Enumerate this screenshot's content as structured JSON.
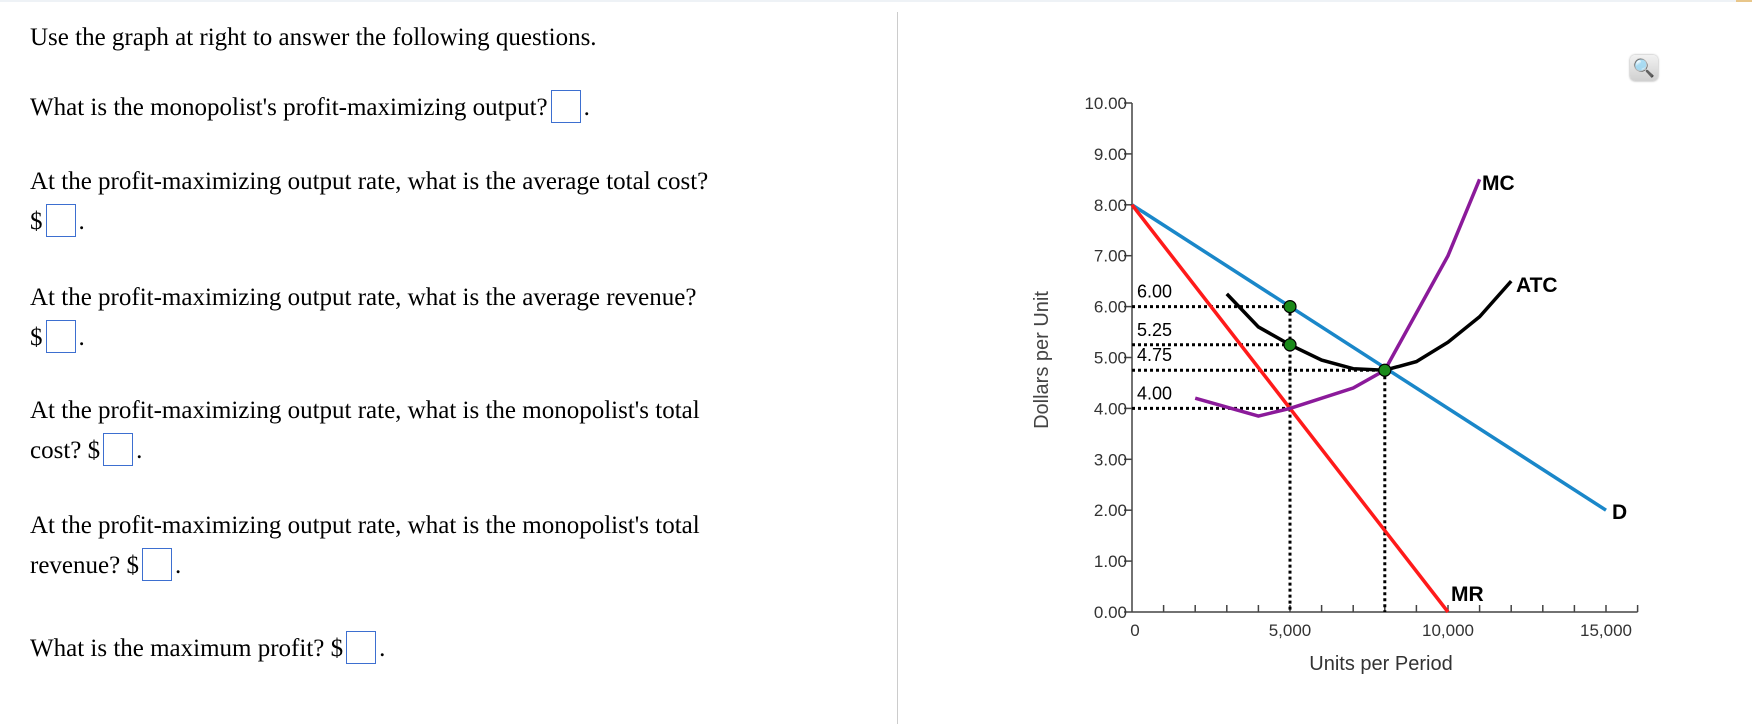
{
  "questions": {
    "intro": "Use the graph at right to answer the following questions.",
    "q1": {
      "text": "What is the monopolist's profit-maximizing output?",
      "value": "",
      "suffix": "."
    },
    "q2": {
      "text": "At the profit-maximizing output rate, what is the average total cost?",
      "prefix": "$",
      "value": "",
      "suffix": "."
    },
    "q3": {
      "text": "At the profit-maximizing output rate, what is the average revenue?",
      "prefix": "$",
      "value": "",
      "suffix": "."
    },
    "q4": {
      "text": "At the profit-maximizing output rate, what is the monopolist's total",
      "text2": "cost?",
      "prefix": "$",
      "value": "",
      "suffix": "."
    },
    "q5": {
      "text": "At the profit-maximizing output rate, what is the monopolist's total",
      "text2": "revenue?",
      "prefix": "$",
      "value": "",
      "suffix": "."
    },
    "q6": {
      "text": "What is the maximum profit?",
      "prefix": "$",
      "value": "",
      "suffix": "."
    }
  },
  "toolbar": {
    "zoom_icon": "magnifier-plus-icon"
  },
  "chart_data": {
    "type": "line",
    "xlabel": "Units per Period",
    "ylabel": "Dollars per Unit",
    "xlim": [
      0,
      16000
    ],
    "ylim": [
      0,
      10
    ],
    "x_ticks": [
      0,
      5000,
      10000,
      15000
    ],
    "x_tick_labels": [
      "0",
      "5,000",
      "10,000",
      "15,000"
    ],
    "y_ticks": [
      0,
      1,
      2,
      3,
      4,
      5,
      6,
      7,
      8,
      9,
      10
    ],
    "y_tick_labels": [
      "0.00",
      "1.00",
      "2.00",
      "3.00",
      "4.00",
      "5.00",
      "6.00",
      "7.00",
      "8.00",
      "9.00",
      "10.00"
    ],
    "series": [
      {
        "name": "D",
        "color": "#1a87c9",
        "points": [
          [
            0,
            8
          ],
          [
            15000,
            2
          ]
        ]
      },
      {
        "name": "MR",
        "color": "#ff1a1a",
        "points": [
          [
            0,
            8
          ],
          [
            10000,
            0
          ]
        ]
      },
      {
        "name": "MC",
        "color": "#8b1a9a",
        "points": [
          [
            2000,
            4.2
          ],
          [
            4000,
            3.85
          ],
          [
            5000,
            4.0
          ],
          [
            7000,
            4.4
          ],
          [
            8000,
            4.75
          ],
          [
            10000,
            7.0
          ],
          [
            11000,
            8.5
          ]
        ]
      },
      {
        "name": "ATC",
        "color": "#000000",
        "points": [
          [
            3000,
            6.25
          ],
          [
            4000,
            5.6
          ],
          [
            5000,
            5.25
          ],
          [
            6000,
            4.95
          ],
          [
            7000,
            4.78
          ],
          [
            8000,
            4.75
          ],
          [
            9000,
            4.92
          ],
          [
            10000,
            5.3
          ],
          [
            11000,
            5.8
          ],
          [
            12000,
            6.5
          ]
        ]
      }
    ],
    "marked_points": [
      [
        5000,
        6.0
      ],
      [
        5000,
        5.25
      ],
      [
        8000,
        4.75
      ]
    ],
    "marker_color": "#1a8a1a",
    "guide_lines": [
      {
        "label": "6.00",
        "y": 6.0,
        "x": 5000
      },
      {
        "label": "5.25",
        "y": 5.25,
        "x": 5000
      },
      {
        "label": "4.75",
        "y": 4.75,
        "x": 8000
      },
      {
        "label": "4.00",
        "y": 4.0,
        "x": 5000
      }
    ],
    "vertical_guides": [
      [
        5000,
        6.0
      ],
      [
        8000,
        4.75
      ]
    ]
  }
}
